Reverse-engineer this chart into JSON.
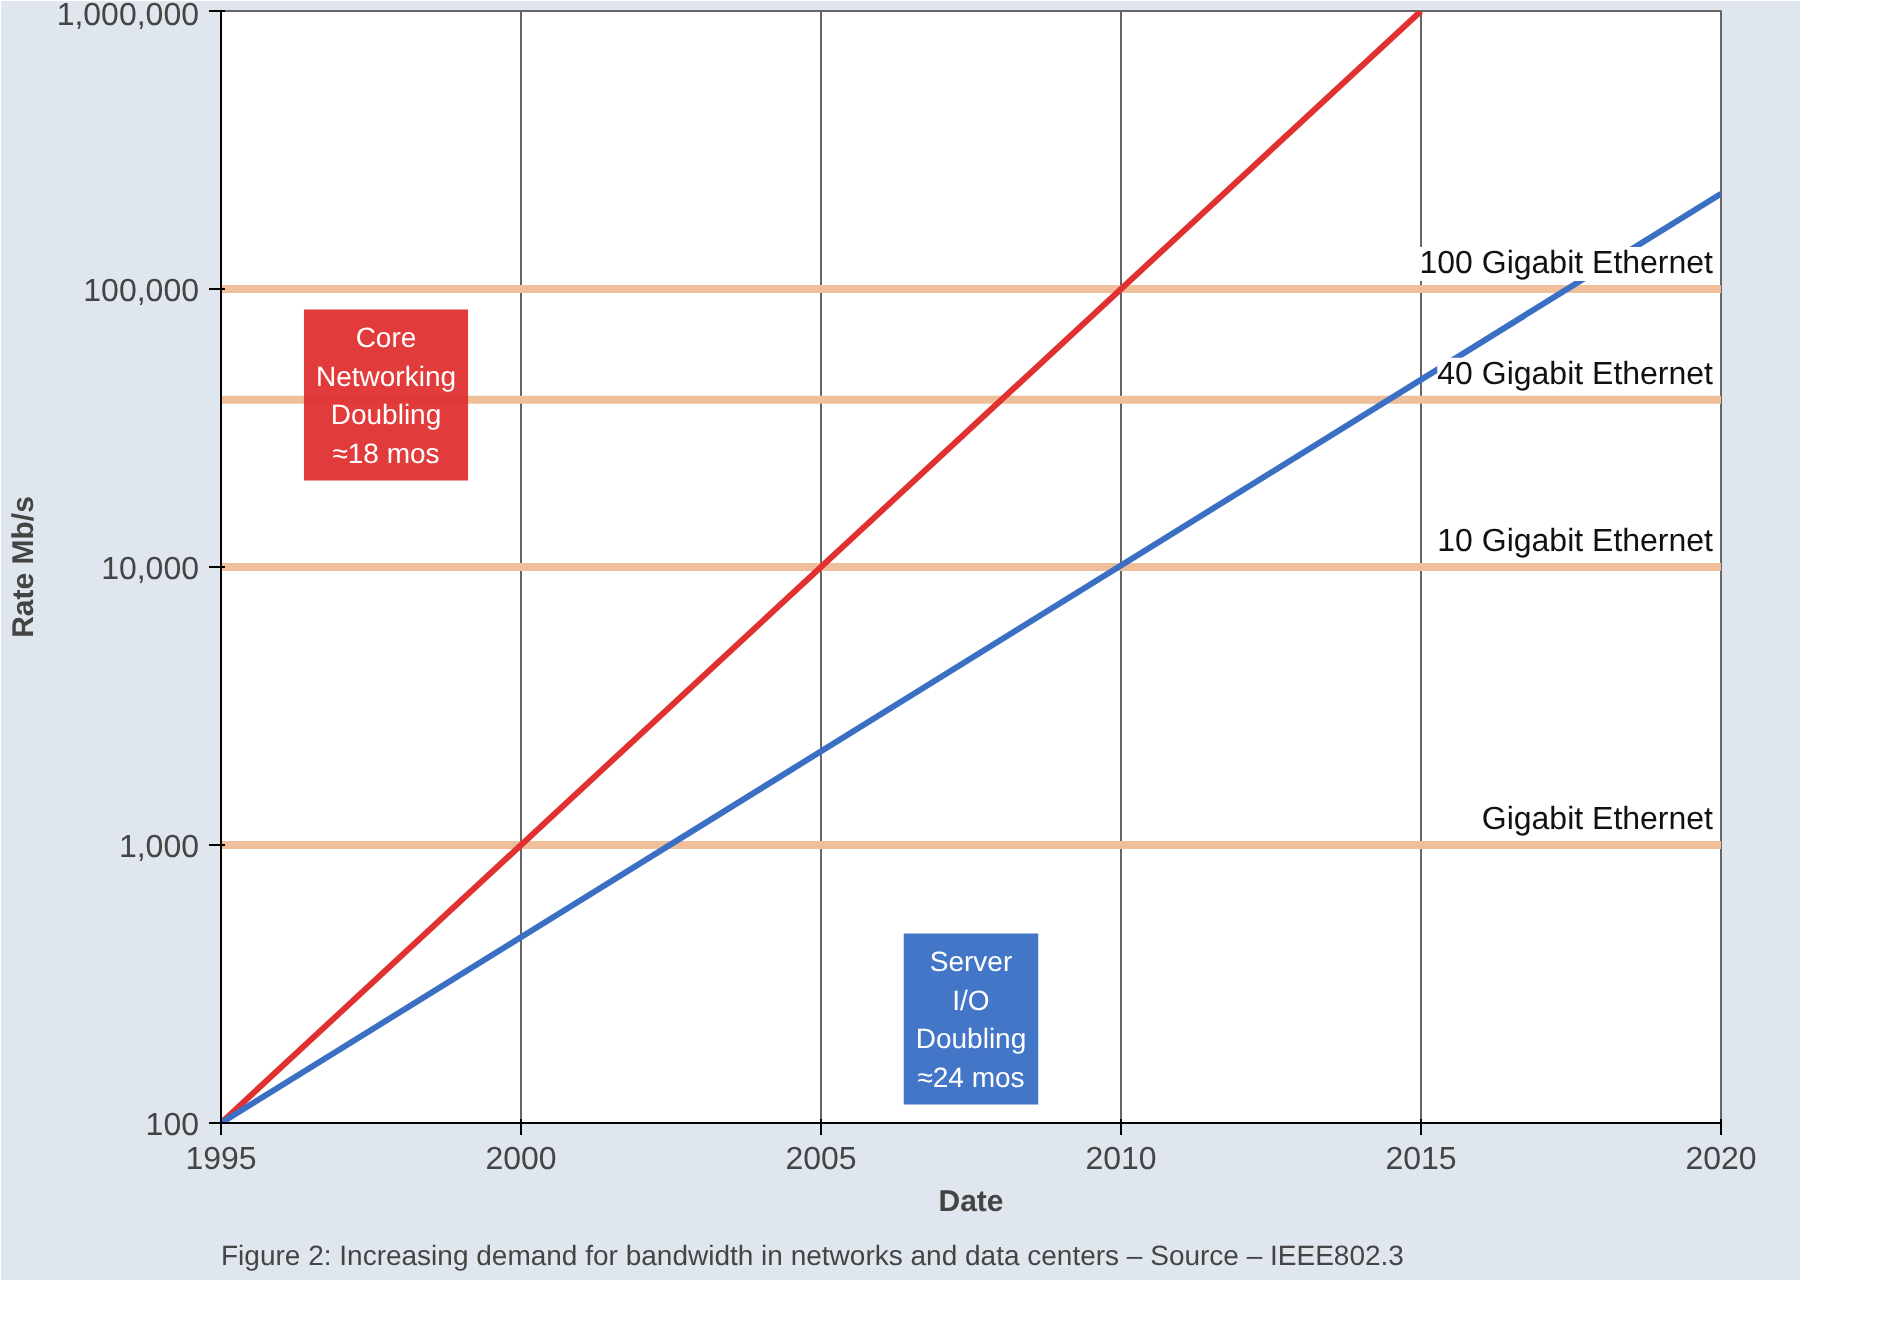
{
  "chart_data": {
    "type": "line",
    "xlabel": "Date",
    "ylabel": "Rate Mb/s",
    "log": "y",
    "grid": true,
    "series": [
      {
        "color": "#e03030",
        "x": [
          1995,
          2015
        ],
        "values": [
          100,
          1000000
        ]
      },
      {
        "color": "#3a6fc4",
        "x": [
          1995,
          2020
        ],
        "values": [
          100,
          220000
        ]
      }
    ],
    "xlim": [
      1995,
      2020
    ],
    "xticks": [
      1995,
      2000,
      2005,
      2010,
      2015,
      2020
    ],
    "ylim": [
      100,
      1000000
    ],
    "yticks": [
      {
        "value": 100,
        "label": "100"
      },
      {
        "value": 1000,
        "label": "1,000"
      },
      {
        "value": 10000,
        "label": "10,000"
      },
      {
        "value": 100000,
        "label": "100,000"
      },
      {
        "value": 1000000,
        "label": "1,000,000"
      }
    ],
    "ref_lines": [
      {
        "axis": "y",
        "value": 100000,
        "label": "100 Gigabit Ethernet",
        "color": "#eebf9a"
      },
      {
        "axis": "y",
        "value": 40000,
        "label": "40 Gigabit Ethernet",
        "color": "#eebf9a"
      },
      {
        "axis": "y",
        "value": 10000,
        "label": "10 Gigabit Ethernet",
        "color": "#eebf9a"
      },
      {
        "axis": "y",
        "value": 1000,
        "label": "Gigabit Ethernet",
        "color": "#eebf9a"
      }
    ],
    "annotations": [
      "Core\nNetworking\nDoubling\n≈18 mos",
      "Server\nI/O\nDoubling\n≈24 mos",
      "Figure 2: Increasing demand for bandwidth in networks and data centers – Source – IEEE802.3"
    ]
  }
}
